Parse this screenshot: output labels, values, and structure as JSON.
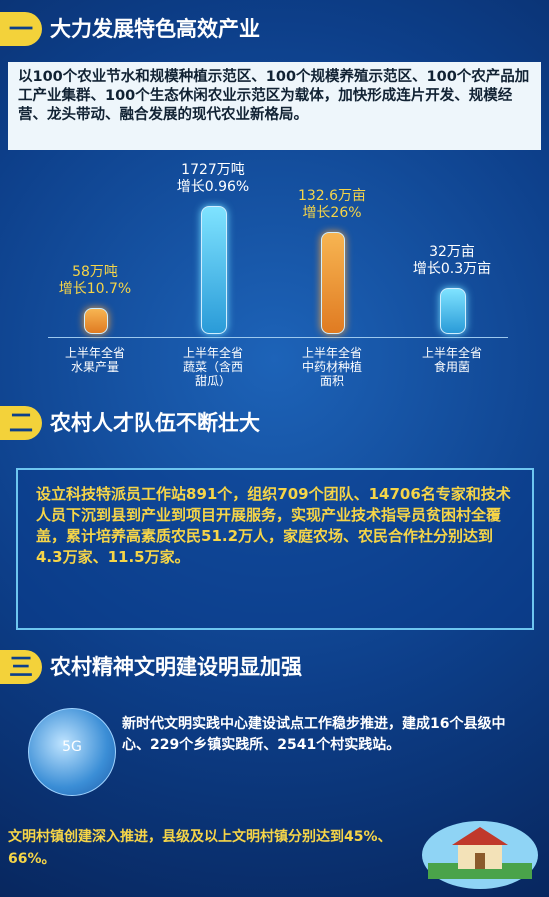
{
  "sections": [
    {
      "badge": "一",
      "title": "大力发展特色高效产业",
      "text": "以100个农业节水和规模种植示范区、100个规模养殖示范区、100个农产品加工产业集群、100个生态休闲农业示范区为载体，加快形成连片开发、规模经营、龙头带动、融合发展的现代农业新格局。",
      "stats": [
        {
          "value": "58万吨",
          "growth": "增长10.7%",
          "label": [
            "上半年全省",
            "水果产量"
          ]
        },
        {
          "value": "1727万吨",
          "growth": "增长0.96%",
          "label": [
            "上半年全省",
            "蔬菜（含西",
            "甜瓜）"
          ]
        },
        {
          "value": "132.6万亩",
          "growth": "增长26%",
          "label": [
            "上半年全省",
            "中药材种植",
            "面积"
          ]
        },
        {
          "value": "32万亩",
          "growth": "增长0.3万亩",
          "label": [
            "上半年全省",
            "食用菌"
          ]
        }
      ]
    },
    {
      "badge": "二",
      "title": "农村人才队伍不断壮大",
      "text": "设立科技特派员工作站891个，组织709个团队、14706名专家和技术人员下沉到县到产业到项目开展服务，实现产业技术指导员贫困村全覆盖，累计培养高素质农民51.2万人，家庭农场、农民合作社分别达到4.3万家、11.5万家。"
    },
    {
      "badge": "三",
      "title": "农村精神文明建设明显加强",
      "icon": "5G",
      "text": "新时代文明实践中心建设试点工作稳步推进，建成16个县级中心、229个乡镇实践所、2541个村实践站。",
      "text2": "文明村镇创建深入推进，县级及以上文明村镇分别达到45%、66%。"
    }
  ]
}
